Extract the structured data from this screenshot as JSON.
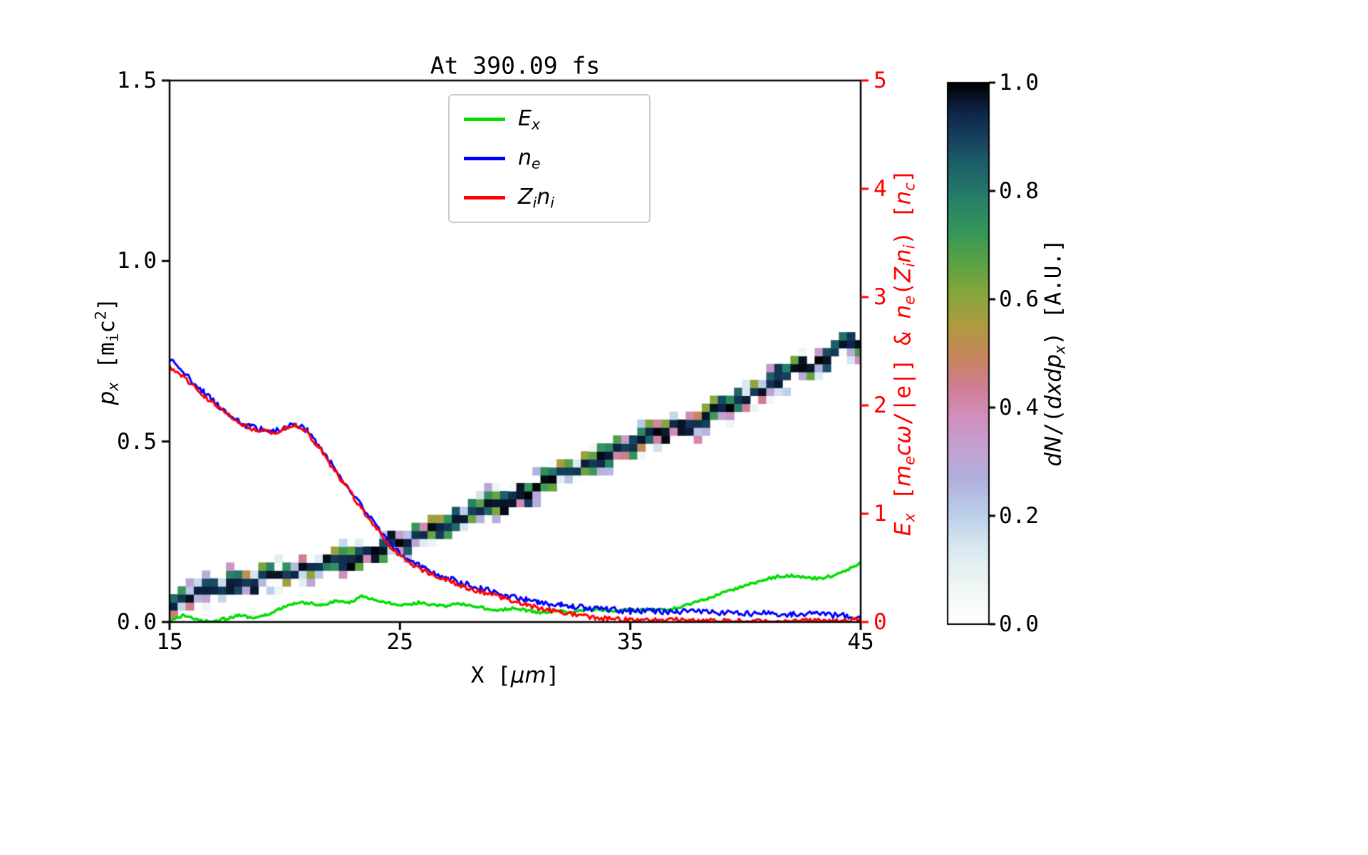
{
  "title": "At 390.09 fs",
  "colors": {
    "ex_green": "#00dd00",
    "ne_blue": "#0000ff",
    "zini_red": "#ff0000",
    "axis_black": "#000000",
    "right_axis_red": "#ff0000",
    "legend_border": "#cccccc"
  },
  "axes": {
    "x": {
      "label_parts": [
        {
          "t": "X [",
          "s": "m"
        },
        {
          "t": "μm",
          "s": "i"
        },
        {
          "t": "]",
          "s": "m"
        }
      ],
      "ticks": [
        {
          "v": 15,
          "label": "15"
        },
        {
          "v": 25,
          "label": "25"
        },
        {
          "v": 35,
          "label": "35"
        },
        {
          "v": 45,
          "label": "45"
        }
      ]
    },
    "left": {
      "label_parts": [
        {
          "t": "p",
          "s": "i"
        },
        {
          "t": "x",
          "s": "isub"
        },
        {
          "t": " [",
          "s": "m"
        },
        {
          "t": "m",
          "s": "m"
        },
        {
          "t": "i",
          "s": "msub"
        },
        {
          "t": "c",
          "s": "m"
        },
        {
          "t": "2",
          "s": "msup"
        },
        {
          "t": "]",
          "s": "m"
        }
      ],
      "ticks": [
        {
          "v": 0,
          "label": "0.0"
        },
        {
          "v": 0.5,
          "label": "0.5"
        },
        {
          "v": 1.0,
          "label": "1.0"
        },
        {
          "v": 1.5,
          "label": "1.5"
        }
      ]
    },
    "right": {
      "color": "#ff0000",
      "label_parts": [
        {
          "t": "E",
          "s": "i"
        },
        {
          "t": "x",
          "s": "isub"
        },
        {
          "t": " [",
          "s": "m"
        },
        {
          "t": "m",
          "s": "i"
        },
        {
          "t": "e",
          "s": "isub"
        },
        {
          "t": "cω",
          "s": "i"
        },
        {
          "t": "/|e|]",
          "s": "m"
        },
        {
          "t": " & ",
          "s": "m"
        },
        {
          "t": "n",
          "s": "i"
        },
        {
          "t": "e",
          "s": "isub"
        },
        {
          "t": "(",
          "s": "m"
        },
        {
          "t": "Z",
          "s": "i"
        },
        {
          "t": "i",
          "s": "isub"
        },
        {
          "t": "n",
          "s": "i"
        },
        {
          "t": "i",
          "s": "isub"
        },
        {
          "t": ")",
          "s": "m"
        },
        {
          "t": " [",
          "s": "m"
        },
        {
          "t": "n",
          "s": "i"
        },
        {
          "t": "c",
          "s": "isub"
        },
        {
          "t": "]",
          "s": "m"
        }
      ],
      "ticks": [
        {
          "v": 0,
          "label": "0"
        },
        {
          "v": 1,
          "label": "1"
        },
        {
          "v": 2,
          "label": "2"
        },
        {
          "v": 3,
          "label": "3"
        },
        {
          "v": 4,
          "label": "4"
        },
        {
          "v": 5,
          "label": "5"
        }
      ]
    }
  },
  "legend": {
    "items": [
      {
        "key": "Ex",
        "color": "#00dd00",
        "label_parts": [
          {
            "t": "E",
            "s": "i"
          },
          {
            "t": "x",
            "s": "isub"
          }
        ]
      },
      {
        "key": "ne",
        "color": "#0000ff",
        "label_parts": [
          {
            "t": "n",
            "s": "i"
          },
          {
            "t": "e",
            "s": "isub"
          }
        ]
      },
      {
        "key": "Zini",
        "color": "#ff0000",
        "label_parts": [
          {
            "t": "Z",
            "s": "i"
          },
          {
            "t": "i",
            "s": "isub"
          },
          {
            "t": "n",
            "s": "i"
          },
          {
            "t": "i",
            "s": "isub"
          }
        ]
      }
    ]
  },
  "colorbar": {
    "label_parts": [
      {
        "t": "dN",
        "s": "i"
      },
      {
        "t": "/(",
        "s": "m"
      },
      {
        "t": "dxdp",
        "s": "i"
      },
      {
        "t": "x",
        "s": "isub"
      },
      {
        "t": ")",
        "s": "m"
      },
      {
        "t": " [A.U.]",
        "s": "m"
      }
    ],
    "ticks": [
      {
        "v": 0,
        "label": "0.0"
      },
      {
        "v": 0.2,
        "label": "0.2"
      },
      {
        "v": 0.4,
        "label": "0.4"
      },
      {
        "v": 0.6,
        "label": "0.6"
      },
      {
        "v": 0.8,
        "label": "0.8"
      },
      {
        "v": 1.0,
        "label": "1.0"
      }
    ],
    "range": [
      0,
      1
    ],
    "stops": [
      [
        0,
        "#ffffff"
      ],
      [
        0.07,
        "#f0f7f4"
      ],
      [
        0.14,
        "#d9e9f1"
      ],
      [
        0.2,
        "#bcd0ea"
      ],
      [
        0.27,
        "#b2afdd"
      ],
      [
        0.33,
        "#c5a0d2"
      ],
      [
        0.39,
        "#d28cb8"
      ],
      [
        0.44,
        "#cf7e92"
      ],
      [
        0.49,
        "#c8855f"
      ],
      [
        0.55,
        "#b09a40"
      ],
      [
        0.61,
        "#87a63c"
      ],
      [
        0.67,
        "#58a245"
      ],
      [
        0.73,
        "#34955c"
      ],
      [
        0.79,
        "#267d69"
      ],
      [
        0.85,
        "#1d5f68"
      ],
      [
        0.9,
        "#163f5e"
      ],
      [
        0.95,
        "#0d2345"
      ],
      [
        1,
        "#000000"
      ]
    ]
  },
  "chart_data": {
    "type": "line",
    "title": "At 390.09 fs",
    "xlabel": "X [um]",
    "x_range": [
      15,
      45
    ],
    "left_axis": {
      "label": "p_x [m_i c^2]",
      "range": [
        0,
        1.5
      ]
    },
    "right_axis": {
      "label": "E_x [m_e c w/|e|] & n_e(Z_i n_i) [n_c]",
      "range": [
        0,
        5
      ]
    },
    "legend_position": "upper center",
    "grid": false,
    "series": [
      {
        "name": "E_x",
        "axis": "right",
        "color": "#00dd00",
        "linewidth": 3.5,
        "noise": 0.012,
        "points": [
          [
            15,
            0.02
          ],
          [
            15.6,
            0.06
          ],
          [
            16.2,
            0.02
          ],
          [
            16.8,
            0.0
          ],
          [
            17.4,
            0.03
          ],
          [
            18,
            0.06
          ],
          [
            18.6,
            0.04
          ],
          [
            19.2,
            0.07
          ],
          [
            19.8,
            0.12
          ],
          [
            20.4,
            0.17
          ],
          [
            21,
            0.18
          ],
          [
            21.6,
            0.16
          ],
          [
            22.2,
            0.19
          ],
          [
            22.8,
            0.18
          ],
          [
            23.4,
            0.24
          ],
          [
            24,
            0.2
          ],
          [
            24.6,
            0.17
          ],
          [
            25.2,
            0.16
          ],
          [
            25.8,
            0.18
          ],
          [
            26.4,
            0.16
          ],
          [
            27,
            0.15
          ],
          [
            27.6,
            0.17
          ],
          [
            28.2,
            0.15
          ],
          [
            28.8,
            0.12
          ],
          [
            29.4,
            0.11
          ],
          [
            30,
            0.13
          ],
          [
            30.6,
            0.1
          ],
          [
            31.2,
            0.08
          ],
          [
            31.8,
            0.1
          ],
          [
            32.4,
            0.09
          ],
          [
            33,
            0.11
          ],
          [
            33.6,
            0.12
          ],
          [
            34.2,
            0.1
          ],
          [
            34.8,
            0.12
          ],
          [
            35.4,
            0.11
          ],
          [
            36,
            0.12
          ],
          [
            36.6,
            0.11
          ],
          [
            37.2,
            0.14
          ],
          [
            37.8,
            0.18
          ],
          [
            38.4,
            0.22
          ],
          [
            39,
            0.27
          ],
          [
            39.6,
            0.31
          ],
          [
            40.2,
            0.35
          ],
          [
            40.8,
            0.39
          ],
          [
            41.4,
            0.42
          ],
          [
            42,
            0.43
          ],
          [
            42.6,
            0.41
          ],
          [
            43.2,
            0.4
          ],
          [
            43.8,
            0.43
          ],
          [
            44.4,
            0.48
          ],
          [
            45,
            0.55
          ]
        ]
      },
      {
        "name": "n_e",
        "axis": "right",
        "color": "#0000ff",
        "linewidth": 3,
        "noise": 0.028,
        "points": [
          [
            15,
            2.42
          ],
          [
            15.5,
            2.33
          ],
          [
            16,
            2.22
          ],
          [
            16.5,
            2.12
          ],
          [
            17,
            2.02
          ],
          [
            17.5,
            1.93
          ],
          [
            18,
            1.85
          ],
          [
            18.5,
            1.8
          ],
          [
            19,
            1.78
          ],
          [
            19.5,
            1.76
          ],
          [
            20,
            1.79
          ],
          [
            20.5,
            1.83
          ],
          [
            21,
            1.76
          ],
          [
            21.5,
            1.62
          ],
          [
            22,
            1.47
          ],
          [
            22.5,
            1.32
          ],
          [
            23,
            1.17
          ],
          [
            23.5,
            1.02
          ],
          [
            24,
            0.88
          ],
          [
            24.5,
            0.74
          ],
          [
            25,
            0.63
          ],
          [
            25.5,
            0.56
          ],
          [
            26,
            0.5
          ],
          [
            26.5,
            0.45
          ],
          [
            27,
            0.41
          ],
          [
            27.5,
            0.37
          ],
          [
            28,
            0.34
          ],
          [
            28.5,
            0.31
          ],
          [
            29,
            0.28
          ],
          [
            29.5,
            0.25
          ],
          [
            30,
            0.23
          ],
          [
            30.5,
            0.21
          ],
          [
            31,
            0.19
          ],
          [
            31.5,
            0.17
          ],
          [
            32,
            0.16
          ],
          [
            32.5,
            0.14
          ],
          [
            33,
            0.13
          ],
          [
            33.5,
            0.12
          ],
          [
            34,
            0.11
          ],
          [
            34.5,
            0.11
          ],
          [
            35,
            0.1
          ],
          [
            36,
            0.1
          ],
          [
            37,
            0.1
          ],
          [
            38,
            0.09
          ],
          [
            39,
            0.09
          ],
          [
            40,
            0.08
          ],
          [
            41,
            0.08
          ],
          [
            42,
            0.07
          ],
          [
            43,
            0.07
          ],
          [
            44,
            0.06
          ],
          [
            45,
            0.05
          ]
        ]
      },
      {
        "name": "Z_i n_i",
        "axis": "right",
        "color": "#ff0000",
        "linewidth": 3,
        "noise": 0.022,
        "points": [
          [
            15,
            2.36
          ],
          [
            15.5,
            2.28
          ],
          [
            16,
            2.18
          ],
          [
            16.5,
            2.08
          ],
          [
            17,
            2.0
          ],
          [
            17.5,
            1.92
          ],
          [
            18,
            1.84
          ],
          [
            18.5,
            1.79
          ],
          [
            19,
            1.77
          ],
          [
            19.5,
            1.75
          ],
          [
            20,
            1.78
          ],
          [
            20.5,
            1.82
          ],
          [
            21,
            1.74
          ],
          [
            21.5,
            1.6
          ],
          [
            22,
            1.45
          ],
          [
            22.5,
            1.3
          ],
          [
            23,
            1.15
          ],
          [
            23.5,
            1.0
          ],
          [
            24,
            0.86
          ],
          [
            24.5,
            0.72
          ],
          [
            25,
            0.61
          ],
          [
            25.5,
            0.54
          ],
          [
            26,
            0.48
          ],
          [
            26.5,
            0.43
          ],
          [
            27,
            0.39
          ],
          [
            27.5,
            0.35
          ],
          [
            28,
            0.31
          ],
          [
            28.5,
            0.28
          ],
          [
            29,
            0.25
          ],
          [
            29.5,
            0.22
          ],
          [
            30,
            0.19
          ],
          [
            30.5,
            0.16
          ],
          [
            31,
            0.13
          ],
          [
            31.5,
            0.11
          ],
          [
            32,
            0.09
          ],
          [
            32.5,
            0.07
          ],
          [
            33,
            0.05
          ],
          [
            33.5,
            0.04
          ],
          [
            34,
            0.03
          ],
          [
            35,
            0.02
          ],
          [
            36,
            0.02
          ],
          [
            37,
            0.02
          ],
          [
            38,
            0.01
          ],
          [
            39,
            0.01
          ],
          [
            40,
            0.01
          ],
          [
            41,
            0.01
          ],
          [
            42,
            0.01
          ],
          [
            43,
            0.01
          ],
          [
            44,
            0.01
          ],
          [
            45,
            0.02
          ]
        ]
      }
    ],
    "band": {
      "description": "ion phase-space density dN/(dxdp_x), pixelated diagonal band, dark core value ~1.0",
      "axis": "left",
      "cell_dx": 0.35,
      "cell_dp": 0.022,
      "seed": 11,
      "centerline": [
        [
          15,
          0.05
        ],
        [
          17,
          0.095
        ],
        [
          19,
          0.125
        ],
        [
          20,
          0.135
        ],
        [
          22,
          0.17
        ],
        [
          24,
          0.2
        ],
        [
          25,
          0.215
        ],
        [
          26,
          0.245
        ],
        [
          28,
          0.3
        ],
        [
          30,
          0.35
        ],
        [
          32,
          0.405
        ],
        [
          34,
          0.46
        ],
        [
          35,
          0.49
        ],
        [
          37,
          0.545
        ],
        [
          38,
          0.565
        ],
        [
          40,
          0.625
        ],
        [
          42,
          0.695
        ],
        [
          44,
          0.75
        ],
        [
          45,
          0.775
        ]
      ]
    }
  }
}
